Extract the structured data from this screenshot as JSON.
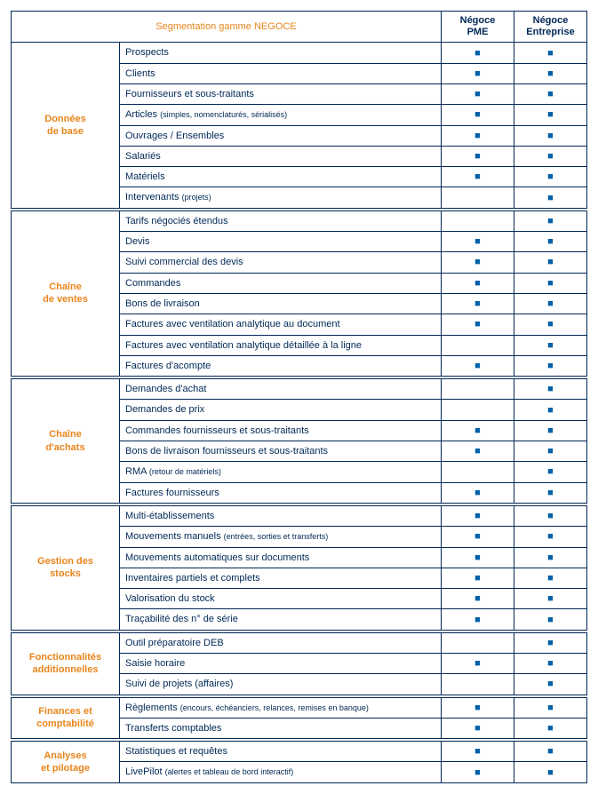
{
  "title": "Segmentation gamme NEGOCE",
  "colors": {
    "accent": "#e8851b",
    "border": "#002855",
    "marker": "#0060a8",
    "text": "#002855",
    "background": "#ffffff"
  },
  "typography": {
    "title_fontsize": 20,
    "header_fontsize": 12,
    "section_fontsize": 12,
    "row_fontsize": 11,
    "small_fontsize": 9,
    "font_family": "Arial"
  },
  "marker_glyph": "■",
  "columns": [
    {
      "id": "pme",
      "label_line1": "Négoce",
      "label_line2": "PME"
    },
    {
      "id": "ent",
      "label_line1": "Négoce",
      "label_line2": "Entreprise"
    }
  ],
  "sections": [
    {
      "id": "donnees-de-base",
      "label": "Données<br>de base",
      "rows": [
        {
          "label": "Prospects",
          "pme": true,
          "ent": true
        },
        {
          "label": "Clients",
          "pme": true,
          "ent": true
        },
        {
          "label": "Fournisseurs et sous-traitants",
          "pme": true,
          "ent": true
        },
        {
          "label": "Articles",
          "small": "(simples, nomenclaturés, sérialisés)",
          "pme": true,
          "ent": true
        },
        {
          "label": "Ouvrages / Ensembles",
          "pme": true,
          "ent": true
        },
        {
          "label": "Salariés",
          "pme": true,
          "ent": true
        },
        {
          "label": "Matériels",
          "pme": true,
          "ent": true
        },
        {
          "label": "Intervenants",
          "small": "(projets)",
          "pme": false,
          "ent": true
        }
      ]
    },
    {
      "id": "chaine-de-ventes",
      "label": "Chaîne<br>de ventes",
      "rows": [
        {
          "label": "Tarifs négociés étendus",
          "pme": false,
          "ent": true
        },
        {
          "label": "Devis",
          "pme": true,
          "ent": true
        },
        {
          "label": "Suivi commercial des devis",
          "pme": true,
          "ent": true
        },
        {
          "label": "Commandes",
          "pme": true,
          "ent": true
        },
        {
          "label": "Bons de livraison",
          "pme": true,
          "ent": true
        },
        {
          "label": "Factures avec ventilation analytique au document",
          "pme": true,
          "ent": true
        },
        {
          "label": "Factures avec ventilation analytique détaillée à la ligne",
          "pme": false,
          "ent": true
        },
        {
          "label": "Factures d'acompte",
          "pme": true,
          "ent": true
        }
      ]
    },
    {
      "id": "chaine-dachats",
      "label": "Chaîne<br>d'achats",
      "rows": [
        {
          "label": "Demandes d'achat",
          "pme": false,
          "ent": true
        },
        {
          "label": "Demandes de prix",
          "pme": false,
          "ent": true
        },
        {
          "label": "Commandes fournisseurs et sous-traitants",
          "pme": true,
          "ent": true
        },
        {
          "label": "Bons de livraison fournisseurs et sous-traitants",
          "pme": true,
          "ent": true
        },
        {
          "label": "RMA",
          "small": "(retour de matériels)",
          "pme": false,
          "ent": true
        },
        {
          "label": "Factures fournisseurs",
          "pme": true,
          "ent": true
        }
      ]
    },
    {
      "id": "gestion-des-stocks",
      "label": "Gestion des<br>stocks",
      "rows": [
        {
          "label": "Multi-établissements",
          "pme": true,
          "ent": true
        },
        {
          "label": "Mouvements manuels",
          "small": "(entrées, sorties et transferts)",
          "pme": true,
          "ent": true
        },
        {
          "label": "Mouvements automatiques sur documents",
          "pme": true,
          "ent": true
        },
        {
          "label": "Inventaires partiels et complets",
          "pme": true,
          "ent": true
        },
        {
          "label": "Valorisation du stock",
          "pme": true,
          "ent": true
        },
        {
          "label": "Traçabilité des n° de série",
          "pme": true,
          "ent": true
        }
      ]
    },
    {
      "id": "fonctionnalites-additionnelles",
      "label": "Fonctionnalités<br>additionnelles",
      "rows": [
        {
          "label": "Outil préparatoire DEB",
          "pme": false,
          "ent": true
        },
        {
          "label": "Saisie horaire",
          "pme": true,
          "ent": true
        },
        {
          "label": "Suivi de projets (affaires)",
          "pme": false,
          "ent": true
        }
      ]
    },
    {
      "id": "finances-et-comptabilite",
      "label": "Finances et<br>comptabilité",
      "rows": [
        {
          "label": "Règlements",
          "small": "(encours, échéanciers, relances, remises en banque)",
          "pme": true,
          "ent": true
        },
        {
          "label": "Transferts comptables",
          "pme": true,
          "ent": true
        }
      ]
    },
    {
      "id": "analyses-et-pilotage",
      "label": "Analyses<br>et pilotage",
      "rows": [
        {
          "label": "Statistiques et requêtes",
          "pme": true,
          "ent": true
        },
        {
          "label": "LivePilot",
          "small": "(alertes et tableau de bord interactif)",
          "pme": true,
          "ent": true
        }
      ]
    }
  ]
}
